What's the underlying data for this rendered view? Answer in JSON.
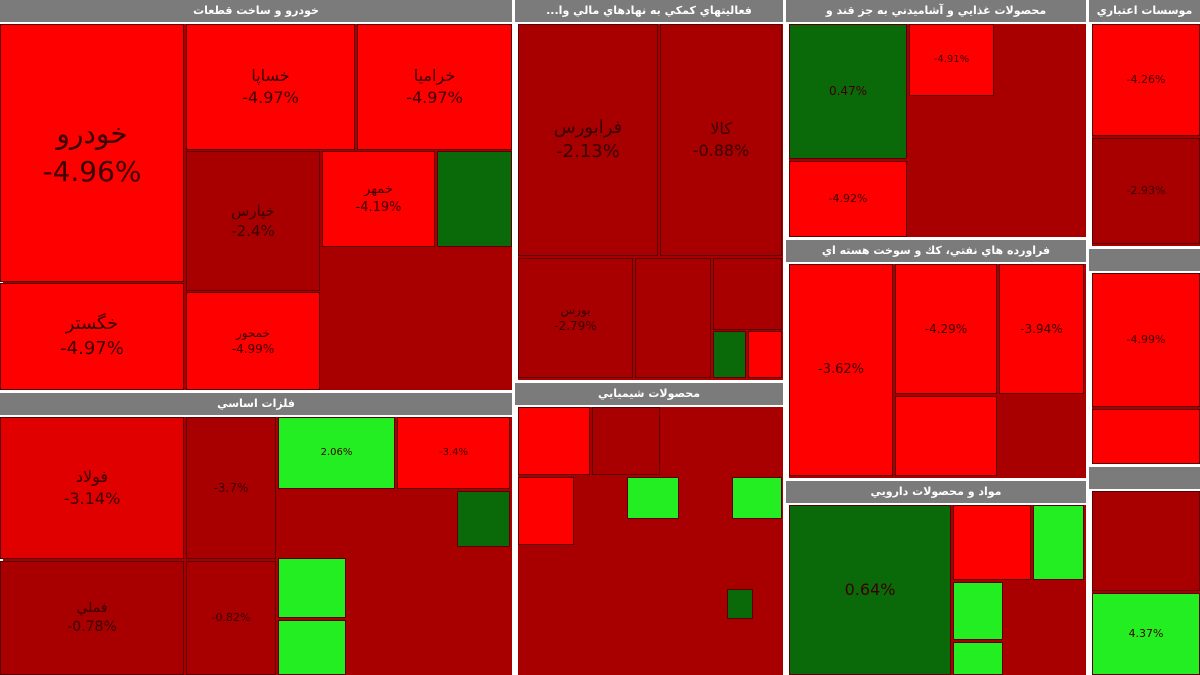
{
  "colors": {
    "header_bg": "#7b7b7b",
    "header_text": "#ffffff",
    "cell_border": "#5a0000",
    "cell_text": "#3a0000",
    "strong_red": "#ff0000",
    "mid_red": "#e00000",
    "dark_red": "#a80000",
    "dark_green": "#0a6a0a",
    "bright_green": "#22ee22"
  },
  "chart_data": {
    "type": "heatmap",
    "subtype": "treemap",
    "sectors": [
      {
        "title": "خودرو و ساخت قطعات",
        "cells": [
          {
            "name": "خودرو",
            "value": "-4.96%",
            "color": "strong_red"
          },
          {
            "name": "خساپا",
            "value": "-4.97%",
            "color": "strong_red"
          },
          {
            "name": "خراميا",
            "value": "-4.97%",
            "color": "strong_red"
          },
          {
            "name": "خگستر",
            "value": "-4.97%",
            "color": "strong_red"
          },
          {
            "name": "خپارس",
            "value": "-2.4%",
            "color": "dark_red"
          },
          {
            "name": "خمهر",
            "value": "-4.19%",
            "color": "strong_red"
          },
          {
            "name": "خمحور",
            "value": "-4.99%",
            "color": "strong_red"
          },
          {
            "name": "",
            "value": "",
            "color": "dark_green"
          }
        ]
      },
      {
        "title": "...فعاليتهاي كمكي به نهادهاي مالي وا",
        "cells": [
          {
            "name": "فرابورس",
            "value": "-2.13%",
            "color": "dark_red"
          },
          {
            "name": "كالا",
            "value": "-0.88%",
            "color": "dark_red"
          },
          {
            "name": "بورس",
            "value": "-2.79%",
            "color": "dark_red"
          },
          {
            "name": "",
            "value": "",
            "color": "dark_red"
          },
          {
            "name": "",
            "value": "",
            "color": "dark_red"
          },
          {
            "name": "",
            "value": "",
            "color": "dark_green"
          },
          {
            "name": "",
            "value": "",
            "color": "strong_red"
          }
        ]
      },
      {
        "title": "محصولات غذايي و آشاميدني به جز قند و",
        "cells": [
          {
            "name": "",
            "value": "0.47%",
            "color": "dark_green"
          },
          {
            "name": "",
            "value": "-4.91%",
            "color": "strong_red"
          },
          {
            "name": "",
            "value": "-4.92%",
            "color": "strong_red"
          }
        ]
      },
      {
        "title": "موسسات اعتباري",
        "cells": [
          {
            "name": "",
            "value": "-4.26%",
            "color": "strong_red"
          },
          {
            "name": "",
            "value": "-2.93%",
            "color": "dark_red"
          }
        ]
      },
      {
        "title": "فلزات اساسي",
        "cells": [
          {
            "name": "فولاد",
            "value": "-3.14%",
            "color": "mid_red"
          },
          {
            "name": "فملي",
            "value": "-0.78%",
            "color": "dark_red"
          },
          {
            "name": "",
            "value": "-3.7%",
            "color": "dark_red"
          },
          {
            "name": "",
            "value": "-0.82%",
            "color": "dark_red"
          },
          {
            "name": "",
            "value": "2.06%",
            "color": "bright_green"
          },
          {
            "name": "",
            "value": "-3.4%",
            "color": "strong_red"
          },
          {
            "name": "",
            "value": "",
            "color": "dark_green"
          },
          {
            "name": "",
            "value": "",
            "color": "bright_green"
          },
          {
            "name": "",
            "value": "",
            "color": "bright_green"
          }
        ]
      },
      {
        "title": "محصولات شيميايي",
        "cells": [
          {
            "name": "",
            "value": "",
            "color": "strong_red"
          },
          {
            "name": "",
            "value": "",
            "color": "dark_red"
          },
          {
            "name": "",
            "value": "",
            "color": "strong_red"
          },
          {
            "name": "",
            "value": "",
            "color": "bright_green"
          },
          {
            "name": "",
            "value": "",
            "color": "bright_green"
          },
          {
            "name": "",
            "value": "",
            "color": "dark_green"
          }
        ]
      },
      {
        "title": "فراورده هاي نفتي، كك و سوخت هسته اي",
        "cells": [
          {
            "name": "",
            "value": "-3.62%",
            "color": "strong_red"
          },
          {
            "name": "",
            "value": "-4.29%",
            "color": "strong_red"
          },
          {
            "name": "",
            "value": "-3.94%",
            "color": "strong_red"
          },
          {
            "name": "",
            "value": "",
            "color": "strong_red"
          }
        ]
      },
      {
        "title": "مواد و محصولات دارويي",
        "cells": [
          {
            "name": "",
            "value": "0.64%",
            "color": "dark_green"
          },
          {
            "name": "",
            "value": "",
            "color": "strong_red"
          },
          {
            "name": "",
            "value": "",
            "color": "bright_green"
          },
          {
            "name": "",
            "value": "",
            "color": "bright_green"
          },
          {
            "name": "",
            "value": "",
            "color": "bright_green"
          }
        ]
      },
      {
        "title": "",
        "cells": [
          {
            "name": "",
            "value": "-4.99%",
            "color": "strong_red"
          },
          {
            "name": "",
            "value": "",
            "color": "strong_red"
          }
        ]
      },
      {
        "title": "",
        "cells": [
          {
            "name": "",
            "value": "",
            "color": "dark_red"
          },
          {
            "name": "",
            "value": "4.37%",
            "color": "bright_green"
          }
        ]
      }
    ]
  }
}
